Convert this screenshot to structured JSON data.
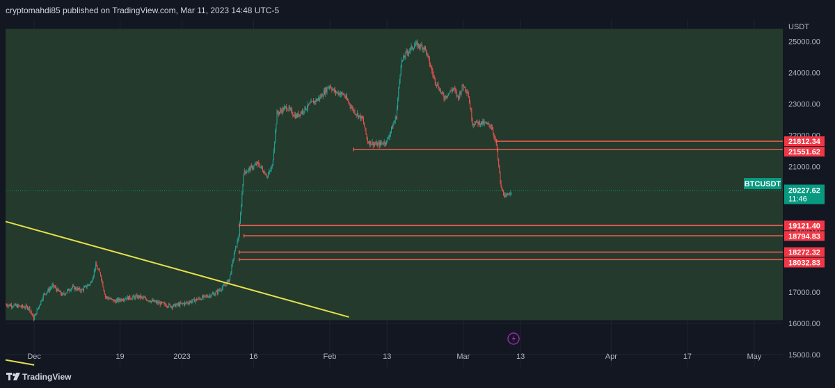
{
  "header": {
    "publisher_line": "cryptomahdi85 published on TradingView.com, Mar 11, 2023 14:48 UTC-5"
  },
  "footer": {
    "brand": "TradingView"
  },
  "colors": {
    "background": "#131722",
    "zone": "#233a2c",
    "up": "#26a69a",
    "down": "#ef5350",
    "level": "#f05a4f",
    "trendline": "#e6e04a",
    "badge_red": "#f23645",
    "badge_green": "#089981",
    "axis_text": "#b2b5be"
  },
  "chart_data": {
    "type": "candlestick",
    "symbol": "BTCUSDT",
    "currency": "USDT",
    "last_price": "20227.62",
    "countdown": "11:46",
    "y_range": [
      14600,
      25700
    ],
    "y_ticks": [
      15000,
      16000,
      17000,
      18000,
      19000,
      20000,
      21000,
      22000,
      23000,
      24000,
      25000
    ],
    "y_tick_labels": [
      "15000.00",
      "16000.00",
      "17000.00",
      "18000.00",
      "19000.00",
      "20000.00",
      "21000.00",
      "22000.00",
      "23000.00",
      "24000.00",
      "25000.00"
    ],
    "x_range": [
      "2022-11-25",
      "2023-05-07"
    ],
    "x_ticks": [
      {
        "date": "2022-12-01",
        "label": "Dec"
      },
      {
        "date": "2022-12-19",
        "label": "19"
      },
      {
        "date": "2023-01-01",
        "label": "2023"
      },
      {
        "date": "2023-01-16",
        "label": "16"
      },
      {
        "date": "2023-02-01",
        "label": "Feb"
      },
      {
        "date": "2023-02-13",
        "label": "13"
      },
      {
        "date": "2023-03-01",
        "label": "Mar"
      },
      {
        "date": "2023-03-13",
        "label": "13"
      },
      {
        "date": "2023-04-01",
        "label": "Apr"
      },
      {
        "date": "2023-04-17",
        "label": "17"
      },
      {
        "date": "2023-05-01",
        "label": "May"
      }
    ],
    "zone": {
      "start": "2022-11-25",
      "end": "2023-05-07",
      "low": 16100,
      "high": 25400
    },
    "levels": [
      {
        "value": 21812.34,
        "label": "21812.34",
        "start": "2023-03-08"
      },
      {
        "value": 21551.62,
        "label": "21551.62",
        "start": "2023-02-06"
      },
      {
        "value": 19121.4,
        "label": "19121.40",
        "start": "2023-01-13"
      },
      {
        "value": 18794.83,
        "label": "18794.83",
        "start": "2023-01-14"
      },
      {
        "value": 18272.32,
        "label": "18272.32",
        "start": "2023-01-13"
      },
      {
        "value": 18032.83,
        "label": "18032.83",
        "start": "2023-01-13"
      }
    ],
    "trendlines": [
      {
        "from": {
          "date": "2022-11-25",
          "price": 19250
        },
        "to": {
          "date": "2023-02-05",
          "price": 16200
        }
      },
      {
        "from": {
          "date": "2022-11-25",
          "price": 14830
        },
        "to": {
          "date": "2022-12-01",
          "price": 14670
        }
      }
    ],
    "price_path": [
      [
        "2022-11-25",
        16600
      ],
      [
        "2022-11-30",
        16500
      ],
      [
        "2022-12-01",
        16150
      ],
      [
        "2022-12-03",
        16900
      ],
      [
        "2022-12-05",
        17200
      ],
      [
        "2022-12-07",
        16900
      ],
      [
        "2022-12-09",
        17150
      ],
      [
        "2022-12-11",
        17050
      ],
      [
        "2022-12-13",
        17300
      ],
      [
        "2022-12-14",
        17850
      ],
      [
        "2022-12-15",
        17550
      ],
      [
        "2022-12-16",
        16850
      ],
      [
        "2022-12-18",
        16700
      ],
      [
        "2022-12-20",
        16800
      ],
      [
        "2022-12-23",
        16850
      ],
      [
        "2022-12-27",
        16650
      ],
      [
        "2022-12-30",
        16550
      ],
      [
        "2023-01-02",
        16650
      ],
      [
        "2023-01-05",
        16800
      ],
      [
        "2023-01-08",
        16950
      ],
      [
        "2023-01-10",
        17200
      ],
      [
        "2023-01-11",
        17400
      ],
      [
        "2023-01-12",
        18200
      ],
      [
        "2023-01-13",
        18800
      ],
      [
        "2023-01-14",
        20800
      ],
      [
        "2023-01-15",
        20900
      ],
      [
        "2023-01-17",
        21100
      ],
      [
        "2023-01-19",
        20700
      ],
      [
        "2023-01-20",
        21000
      ],
      [
        "2023-01-21",
        22700
      ],
      [
        "2023-01-23",
        22900
      ],
      [
        "2023-01-25",
        22600
      ],
      [
        "2023-01-28",
        23000
      ],
      [
        "2023-01-30",
        23200
      ],
      [
        "2023-02-01",
        23600
      ],
      [
        "2023-02-02",
        23400
      ],
      [
        "2023-02-04",
        23300
      ],
      [
        "2023-02-06",
        22800
      ],
      [
        "2023-02-08",
        22500
      ],
      [
        "2023-02-09",
        21800
      ],
      [
        "2023-02-11",
        21700
      ],
      [
        "2023-02-13",
        21800
      ],
      [
        "2023-02-15",
        22600
      ],
      [
        "2023-02-16",
        24300
      ],
      [
        "2023-02-17",
        24600
      ],
      [
        "2023-02-19",
        24900
      ],
      [
        "2023-02-21",
        24800
      ],
      [
        "2023-02-23",
        23800
      ],
      [
        "2023-02-25",
        23200
      ],
      [
        "2023-02-27",
        23500
      ],
      [
        "2023-02-28",
        23200
      ],
      [
        "2023-03-01",
        23600
      ],
      [
        "2023-03-02",
        23400
      ],
      [
        "2023-03-03",
        22400
      ],
      [
        "2023-03-05",
        22400
      ],
      [
        "2023-03-07",
        22300
      ],
      [
        "2023-03-08",
        21700
      ],
      [
        "2023-03-09",
        20300
      ],
      [
        "2023-03-10",
        20000
      ],
      [
        "2023-03-11",
        20227.62
      ]
    ]
  }
}
